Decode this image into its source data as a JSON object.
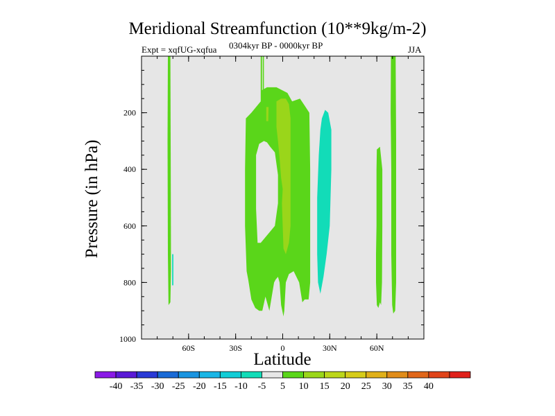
{
  "chart_data": {
    "type": "contour",
    "title": "Meridional Streamfunction (10**9kg/m-2)",
    "subtitle_left": "Expt = xqfUG-xqfua",
    "subtitle_center": "0304kyr BP - 0000kyr BP",
    "subtitle_right": "JJA",
    "xlabel": "Latitude",
    "ylabel": "Pressure (in hPa)",
    "xlim": [
      -90,
      90
    ],
    "ylim": [
      1000,
      0
    ],
    "x_ticks": [
      {
        "value": -60,
        "label": "60S"
      },
      {
        "value": -30,
        "label": "30S"
      },
      {
        "value": 0,
        "label": "0"
      },
      {
        "value": 30,
        "label": "30N"
      },
      {
        "value": 60,
        "label": "60N"
      }
    ],
    "x_minor_step": 10,
    "y_ticks": [
      {
        "value": 200,
        "label": "200"
      },
      {
        "value": 400,
        "label": "400"
      },
      {
        "value": 600,
        "label": "600"
      },
      {
        "value": 800,
        "label": "800"
      },
      {
        "value": 1000,
        "label": "1000"
      }
    ],
    "y_minor_step": 50,
    "background_color": "#e6e6e6",
    "colorbar": {
      "colors": [
        "#8a1ae6",
        "#5a1ad6",
        "#2a3ad6",
        "#1a6ad6",
        "#1a94e0",
        "#1ab6e6",
        "#12cdd6",
        "#12dcb8",
        "#e6e6e6",
        "#5ad61a",
        "#9ad61a",
        "#bcd61a",
        "#d6cc1a",
        "#e0b01a",
        "#e08c1a",
        "#e0661a",
        "#e0441a",
        "#e0201a"
      ],
      "labels": [
        "-40",
        "-35",
        "-30",
        "-25",
        "-20",
        "-15",
        "-10",
        "-5",
        "5",
        "10",
        "15",
        "20",
        "25",
        "30",
        "35",
        "40"
      ]
    },
    "regions": [
      {
        "name": "region-70s-strip",
        "color": "#5ad61a",
        "points": [
          [
            -73.2,
            0
          ],
          [
            -71.6,
            0
          ],
          [
            -71.4,
            380
          ],
          [
            -71.2,
            760
          ],
          [
            -71.6,
            870
          ],
          [
            -72.8,
            880
          ],
          [
            -73.2,
            700
          ],
          [
            -73.4,
            300
          ]
        ]
      },
      {
        "name": "region-70s-blip",
        "color": "#12dcb8",
        "points": [
          [
            -70.5,
            700
          ],
          [
            -69.7,
            700
          ],
          [
            -69.7,
            810
          ],
          [
            -70.5,
            810
          ]
        ]
      },
      {
        "name": "region-tropical-cell",
        "color": "#5ad61a",
        "points": [
          [
            -14,
            0
          ],
          [
            -13.2,
            0
          ],
          [
            -13.2,
            120
          ],
          [
            -10,
            110
          ],
          [
            -4,
            110
          ],
          [
            3,
            130
          ],
          [
            6,
            160
          ],
          [
            11,
            150
          ],
          [
            14,
            175
          ],
          [
            17,
            200
          ],
          [
            17.5,
            400
          ],
          [
            17.5,
            600
          ],
          [
            17.5,
            800
          ],
          [
            16.5,
            860
          ],
          [
            14,
            860
          ],
          [
            12.5,
            870
          ],
          [
            10.5,
            800
          ],
          [
            7,
            760
          ],
          [
            4,
            770
          ],
          [
            2,
            800
          ],
          [
            1,
            900
          ],
          [
            0.5,
            920
          ],
          [
            -1,
            880
          ],
          [
            -2,
            800
          ],
          [
            -3,
            780
          ],
          [
            -4.5,
            790
          ],
          [
            -5.5,
            800
          ],
          [
            -7,
            850
          ],
          [
            -8.5,
            900
          ],
          [
            -11,
            850
          ],
          [
            -13,
            900
          ],
          [
            -15,
            900
          ],
          [
            -17.5,
            890
          ],
          [
            -20,
            860
          ],
          [
            -22,
            790
          ],
          [
            -23,
            760
          ],
          [
            -24,
            600
          ],
          [
            -24,
            400
          ],
          [
            -23.5,
            220
          ],
          [
            -20,
            200
          ],
          [
            -17,
            180
          ],
          [
            -14,
            160
          ],
          [
            -14,
            120
          ]
        ]
      },
      {
        "name": "region-tropical-cell-notch",
        "color": "#5ad61a",
        "points": [
          [
            -12.7,
            0
          ],
          [
            -12,
            0
          ],
          [
            -12,
            120
          ],
          [
            -12.7,
            120
          ]
        ]
      },
      {
        "name": "region-tropical-hole",
        "color": "#e6e6e6",
        "points": [
          [
            -17,
            350
          ],
          [
            -15,
            310
          ],
          [
            -12,
            300
          ],
          [
            -10,
            305
          ],
          [
            -8,
            320
          ],
          [
            -5,
            340
          ],
          [
            -3,
            420
          ],
          [
            -3,
            520
          ],
          [
            -5,
            600
          ],
          [
            -8,
            620
          ],
          [
            -11,
            640
          ],
          [
            -14,
            660
          ],
          [
            -16,
            660
          ],
          [
            -17,
            540
          ],
          [
            -17,
            450
          ]
        ]
      },
      {
        "name": "region-tropical-core",
        "color": "#9ad61a",
        "points": [
          [
            -4,
            160
          ],
          [
            -1,
            150
          ],
          [
            2,
            150
          ],
          [
            4,
            170
          ],
          [
            5,
            220
          ],
          [
            5,
            300
          ],
          [
            5,
            400
          ],
          [
            5,
            500
          ],
          [
            5,
            600
          ],
          [
            4,
            660
          ],
          [
            2,
            700
          ],
          [
            0.5,
            680
          ],
          [
            0,
            600
          ],
          [
            -0.5,
            520
          ],
          [
            0,
            470
          ],
          [
            -1,
            430
          ],
          [
            -2,
            360
          ],
          [
            -3,
            300
          ],
          [
            -4,
            250
          ],
          [
            -4,
            200
          ]
        ]
      },
      {
        "name": "region-tropical-core-tip",
        "color": "#9ad61a",
        "points": [
          [
            -10.5,
            180
          ],
          [
            -9,
            180
          ],
          [
            -9.2,
            230
          ],
          [
            -10.5,
            230
          ]
        ]
      },
      {
        "name": "region-20n-trough",
        "color": "#12dcb8",
        "points": [
          [
            24,
            260
          ],
          [
            25,
            220
          ],
          [
            27,
            190
          ],
          [
            29,
            200
          ],
          [
            31,
            260
          ],
          [
            31,
            400
          ],
          [
            30,
            600
          ],
          [
            28,
            700
          ],
          [
            26,
            780
          ],
          [
            24,
            840
          ],
          [
            22.5,
            800
          ],
          [
            22,
            700
          ],
          [
            22,
            500
          ],
          [
            23,
            350
          ]
        ]
      },
      {
        "name": "region-50n-cell",
        "color": "#5ad61a",
        "points": [
          [
            60,
            330
          ],
          [
            62,
            320
          ],
          [
            63.5,
            400
          ],
          [
            63.5,
            600
          ],
          [
            63.3,
            800
          ],
          [
            62.7,
            880
          ],
          [
            62,
            870
          ],
          [
            61,
            890
          ],
          [
            60,
            880
          ],
          [
            59.5,
            800
          ],
          [
            59.5,
            700
          ],
          [
            59.8,
            600
          ],
          [
            59.8,
            400
          ]
        ]
      },
      {
        "name": "region-60n-strip",
        "color": "#5ad61a",
        "points": [
          [
            69,
            0
          ],
          [
            72,
            0
          ],
          [
            72.3,
            300
          ],
          [
            72.3,
            500
          ],
          [
            72.3,
            800
          ],
          [
            71.7,
            900
          ],
          [
            70.5,
            910
          ],
          [
            69.8,
            880
          ],
          [
            69.2,
            700
          ],
          [
            69.2,
            400
          ],
          [
            68.8,
            200
          ]
        ]
      }
    ]
  }
}
